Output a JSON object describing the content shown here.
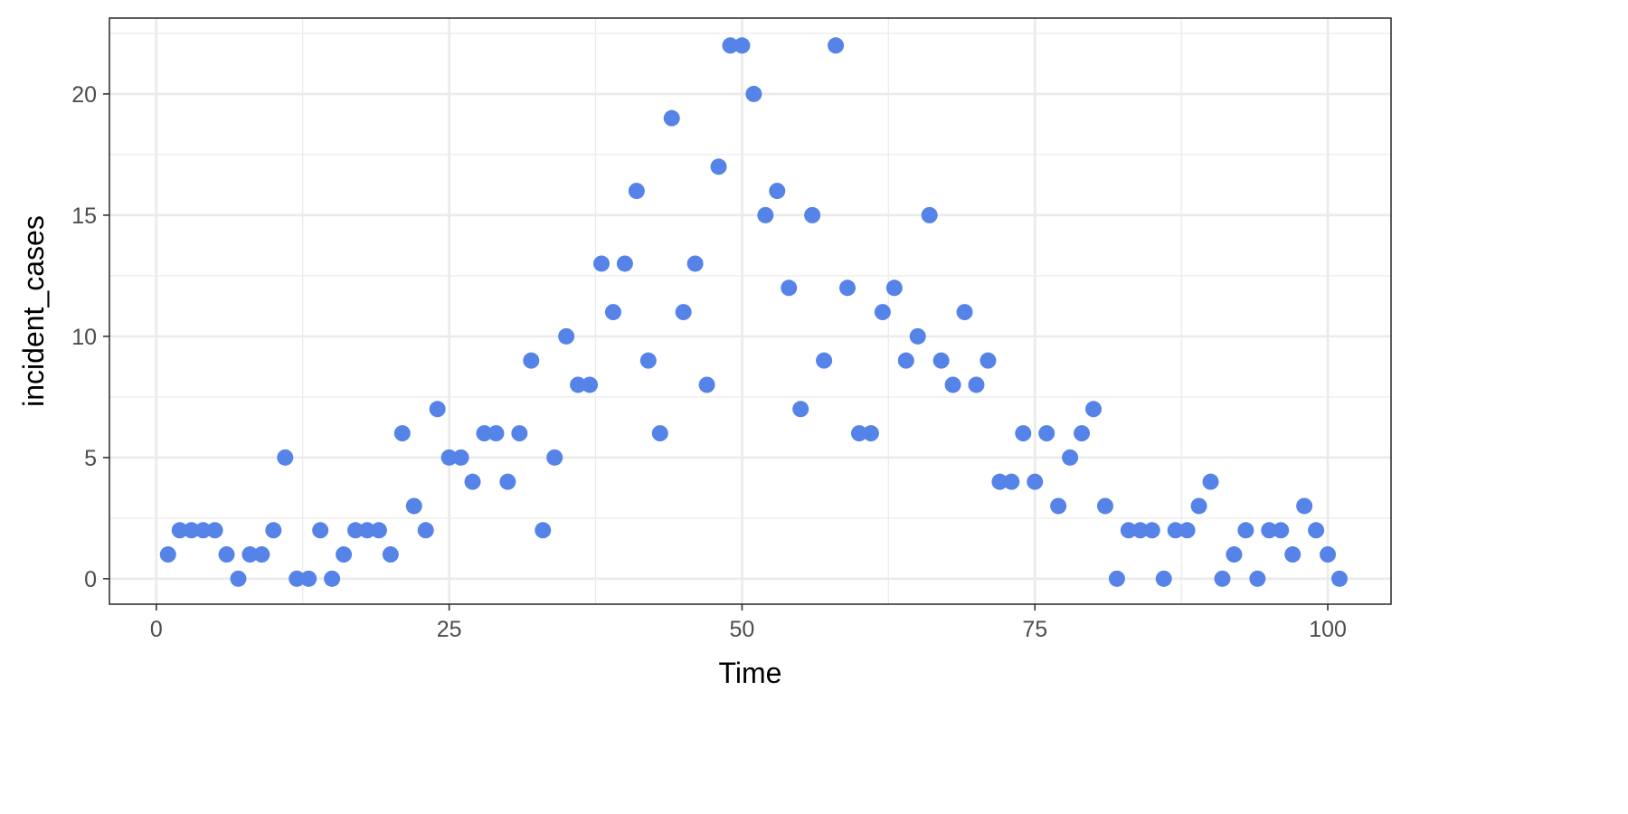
{
  "chart_data": {
    "type": "scatter",
    "title": "",
    "xlabel": "Time",
    "ylabel": "incident_cases",
    "xlim": [
      -4,
      105.4
    ],
    "ylim": [
      -1.05,
      23.13
    ],
    "x_ticks": [
      0,
      25,
      50,
      75,
      100
    ],
    "y_ticks": [
      0,
      5,
      10,
      15,
      20
    ],
    "grid": true,
    "point_color": "#5583E8",
    "x": [
      1,
      2,
      3,
      4,
      5,
      6,
      7,
      8,
      9,
      10,
      11,
      12,
      13,
      14,
      15,
      16,
      17,
      18,
      19,
      20,
      21,
      22,
      23,
      24,
      25,
      26,
      27,
      28,
      29,
      30,
      31,
      32,
      33,
      34,
      35,
      36,
      37,
      38,
      39,
      40,
      41,
      42,
      43,
      44,
      45,
      46,
      47,
      48,
      49,
      50,
      51,
      52,
      53,
      54,
      55,
      56,
      57,
      58,
      59,
      60,
      61,
      62,
      63,
      64,
      65,
      66,
      67,
      68,
      69,
      70,
      71,
      72,
      73,
      74,
      75,
      76,
      77,
      78,
      79,
      80,
      81,
      82,
      83,
      84,
      85,
      86,
      87,
      88,
      89,
      90,
      91,
      92,
      93,
      94,
      95,
      96,
      97,
      98,
      99,
      100,
      101
    ],
    "y": [
      1,
      2,
      2,
      2,
      2,
      1,
      0,
      1,
      1,
      2,
      5,
      0,
      0,
      2,
      0,
      1,
      2,
      2,
      2,
      1,
      6,
      3,
      2,
      7,
      5,
      5,
      4,
      6,
      6,
      4,
      6,
      9,
      2,
      5,
      10,
      8,
      8,
      13,
      11,
      13,
      16,
      9,
      6,
      19,
      11,
      13,
      8,
      17,
      22,
      22,
      20,
      15,
      16,
      12,
      7,
      15,
      9,
      22,
      12,
      6,
      6,
      11,
      12,
      9,
      10,
      15,
      9,
      8,
      11,
      8,
      9,
      4,
      4,
      6,
      4,
      6,
      3,
      5,
      6,
      7,
      3,
      0,
      2,
      2,
      2,
      0,
      2,
      2,
      3,
      4,
      0,
      1,
      2,
      0,
      2,
      2,
      1,
      3,
      2,
      1,
      0
    ]
  }
}
